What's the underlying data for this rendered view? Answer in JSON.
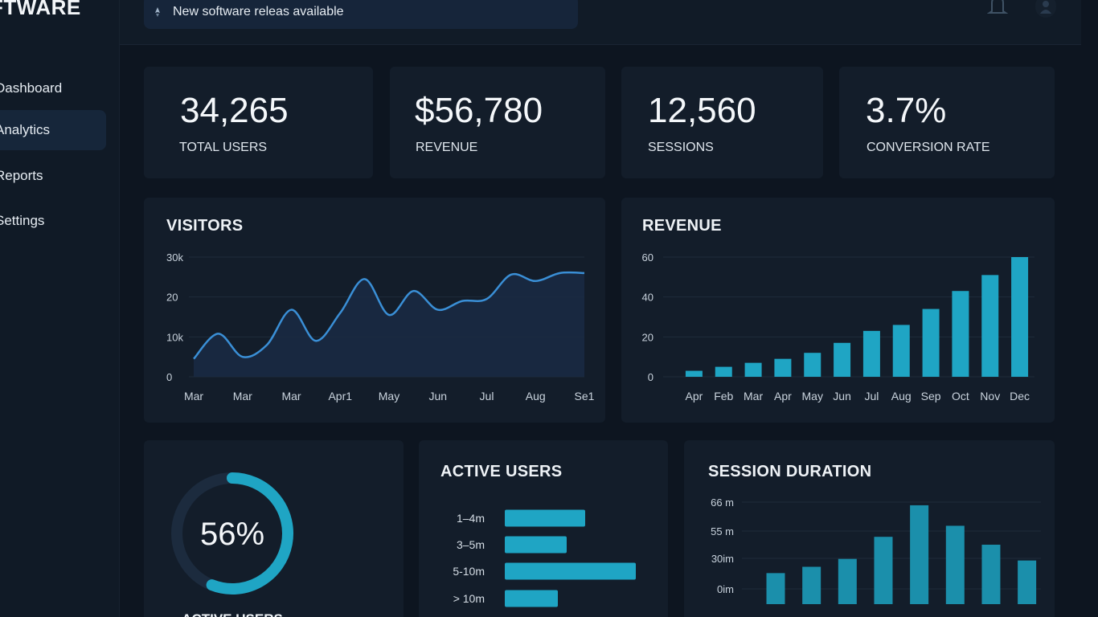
{
  "brand": "FTWARE",
  "nav": [
    {
      "label": "Dashboard",
      "active": false
    },
    {
      "label": "Analytics",
      "active": true
    },
    {
      "label": "Reports",
      "active": false
    },
    {
      "label": "Settings",
      "active": false
    }
  ],
  "notice": {
    "text": "New software  releas available",
    "icon": "rocket-icon"
  },
  "header_icons": [
    "bell-icon",
    "user-avatar-icon"
  ],
  "stats": [
    {
      "value": "34,265",
      "label": "TOTAL USERS"
    },
    {
      "value": "$56,780",
      "label": "REVENUE"
    },
    {
      "value": "12,560",
      "label": "SESSIONS"
    },
    {
      "value": "3.7%",
      "label": "CONVERSION RATE"
    }
  ],
  "colors": {
    "accent": "#1fa5c4",
    "line": "#3a8fd6",
    "background": "#0d1520",
    "card": "#131d2a"
  },
  "chart_data": [
    {
      "type": "area",
      "title": "VISITORS",
      "categories": [
        "Mar",
        "Mar",
        "Mar",
        "Apr1",
        "May",
        "Jun",
        "Jul",
        "Aug",
        "Se1"
      ],
      "y_ticks": [
        "0",
        "10k",
        "20",
        "30k"
      ],
      "ylim": [
        0,
        30000
      ],
      "x": [
        0,
        0.5,
        1,
        1.5,
        2,
        2.5,
        3,
        3.5,
        4,
        4.5,
        5,
        5.5,
        6,
        6.5,
        7,
        7.5,
        8
      ],
      "values": [
        4500,
        10800,
        5000,
        8000,
        16800,
        9000,
        16000,
        24500,
        15500,
        21500,
        16800,
        19000,
        19500,
        25600,
        24000,
        26000,
        26000
      ],
      "grid": true
    },
    {
      "type": "bar",
      "title": "REVENUE",
      "categories": [
        "Apr",
        "Feb",
        "Mar",
        "Apr",
        "May",
        "Jun",
        "Jul",
        "Aug",
        "Sep",
        "Oct",
        "Nov",
        "Dec"
      ],
      "values": [
        3,
        5,
        7,
        9,
        12,
        17,
        23,
        26,
        34,
        43,
        51,
        60
      ],
      "y_ticks": [
        "0",
        "20",
        "40",
        "60"
      ],
      "ylim": [
        0,
        60
      ],
      "grid": true
    },
    {
      "type": "pie",
      "title": "",
      "center_label": "56%",
      "caption": "ACTIVE USERS",
      "values": [
        56,
        44
      ]
    },
    {
      "type": "bar",
      "orientation": "horizontal",
      "title": "ACTIVE USERS",
      "categories": [
        "1–4m",
        "3–5m",
        "5-10m",
        "> 10m"
      ],
      "values": [
        100,
        77,
        163,
        66
      ],
      "xlim": [
        0,
        170
      ]
    },
    {
      "type": "bar",
      "title": "SESSION DURATION",
      "y_ticks": [
        "0im",
        "30im",
        "55 m",
        "66 m"
      ],
      "values": [
        10,
        14,
        19,
        33,
        53,
        40,
        28,
        18
      ],
      "ylim": [
        0,
        55
      ],
      "grid": true
    }
  ]
}
